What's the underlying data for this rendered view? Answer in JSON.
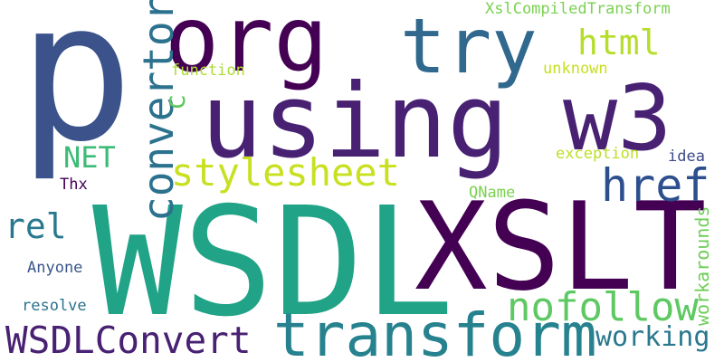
{
  "words": [
    {
      "text": "p"
    },
    {
      "text": "org"
    },
    {
      "text": "try"
    },
    {
      "text": "using"
    },
    {
      "text": "w3"
    },
    {
      "text": "WSDL"
    },
    {
      "text": "XSLT"
    },
    {
      "text": "transform"
    },
    {
      "text": "stylesheet"
    },
    {
      "text": "html"
    },
    {
      "text": "href"
    },
    {
      "text": "nofollow"
    },
    {
      "text": "WSDLConvert"
    },
    {
      "text": "working"
    },
    {
      "text": "rel"
    },
    {
      "text": "NET"
    },
    {
      "text": "XslCompiledTransform"
    },
    {
      "text": "function"
    },
    {
      "text": "unknown"
    },
    {
      "text": "exception"
    },
    {
      "text": "idea"
    },
    {
      "text": "Thx"
    },
    {
      "text": "QName"
    },
    {
      "text": "Anyone"
    },
    {
      "text": "resolve"
    },
    {
      "text": "convertor"
    },
    {
      "text": "c"
    },
    {
      "text": "workarounds"
    }
  ]
}
